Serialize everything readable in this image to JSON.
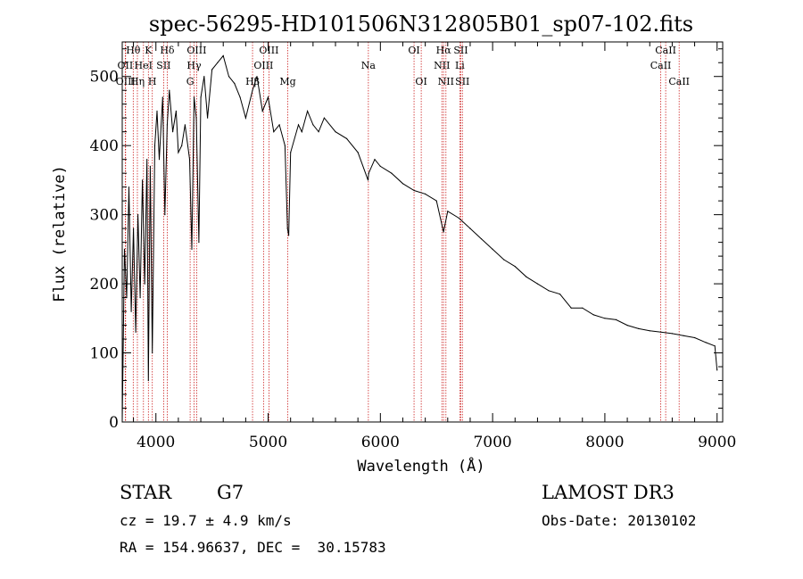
{
  "chart_data": {
    "type": "line",
    "title": "spec-56295-HD101506N312805B01_sp07-102.fits",
    "xlabel": "Wavelength (Å)",
    "ylabel": "Flux (relative)",
    "xlim": [
      3700,
      9050
    ],
    "ylim": [
      0,
      550
    ],
    "xticks": [
      4000,
      5000,
      6000,
      7000,
      8000,
      9000
    ],
    "yticks": [
      0,
      100,
      200,
      300,
      400,
      500
    ],
    "grid": false,
    "series": [
      {
        "name": "flux",
        "x": [
          3700,
          3720,
          3740,
          3760,
          3780,
          3800,
          3820,
          3840,
          3860,
          3880,
          3900,
          3920,
          3933,
          3950,
          3968,
          3990,
          4010,
          4030,
          4060,
          4080,
          4101,
          4120,
          4150,
          4180,
          4200,
          4230,
          4260,
          4300,
          4320,
          4340,
          4360,
          4383,
          4400,
          4430,
          4460,
          4500,
          4550,
          4600,
          4650,
          4700,
          4750,
          4800,
          4861,
          4900,
          4950,
          5000,
          5050,
          5100,
          5150,
          5172,
          5183,
          5200,
          5270,
          5300,
          5350,
          5400,
          5450,
          5500,
          5600,
          5700,
          5800,
          5890,
          5896,
          5950,
          6000,
          6100,
          6200,
          6300,
          6400,
          6500,
          6563,
          6600,
          6700,
          6800,
          6900,
          7000,
          7100,
          7200,
          7300,
          7400,
          7500,
          7600,
          7700,
          7800,
          7900,
          8000,
          8100,
          8200,
          8300,
          8400,
          8500,
          8600,
          8700,
          8800,
          8900,
          8980,
          9000
        ],
        "y": [
          0,
          250,
          180,
          340,
          160,
          280,
          130,
          300,
          180,
          350,
          200,
          380,
          60,
          370,
          100,
          400,
          450,
          380,
          470,
          300,
          430,
          480,
          420,
          450,
          390,
          400,
          430,
          380,
          250,
          470,
          440,
          260,
          470,
          500,
          440,
          510,
          520,
          530,
          500,
          490,
          470,
          440,
          480,
          500,
          450,
          470,
          420,
          430,
          400,
          280,
          270,
          390,
          430,
          420,
          450,
          430,
          420,
          440,
          420,
          410,
          390,
          350,
          360,
          380,
          370,
          360,
          345,
          335,
          330,
          320,
          275,
          305,
          295,
          280,
          265,
          250,
          235,
          225,
          210,
          200,
          190,
          185,
          165,
          165,
          155,
          150,
          148,
          140,
          135,
          132,
          130,
          128,
          125,
          122,
          115,
          110,
          75
        ]
      }
    ],
    "lines": [
      {
        "name": "Hθ",
        "x": 3798,
        "row": 1
      },
      {
        "name": "OII",
        "x": 3727,
        "row": 2
      },
      {
        "name": "OIII",
        "x": 3730,
        "row": 3
      },
      {
        "name": "K",
        "x": 3933,
        "row": 1
      },
      {
        "name": "HeI",
        "x": 3889,
        "row": 2
      },
      {
        "name": "Hη",
        "x": 3835,
        "row": 3
      },
      {
        "name": "SII",
        "x": 4069,
        "row": 2
      },
      {
        "name": "H",
        "x": 3968,
        "row": 3
      },
      {
        "name": "Hδ",
        "x": 4101,
        "row": 1
      },
      {
        "name": "OIII",
        "x": 4363,
        "row": 1
      },
      {
        "name": "Hγ",
        "x": 4340,
        "row": 2
      },
      {
        "name": "G",
        "x": 4305,
        "row": 3
      },
      {
        "name": "Hβ",
        "x": 4861,
        "row": 3
      },
      {
        "name": "OIII",
        "x": 5007,
        "row": 1
      },
      {
        "name": "OIII",
        "x": 4959,
        "row": 2
      },
      {
        "name": "Mg",
        "x": 5175,
        "row": 3
      },
      {
        "name": "Na",
        "x": 5893,
        "row": 2
      },
      {
        "name": "OI",
        "x": 6300,
        "row": 1
      },
      {
        "name": "OI",
        "x": 6364,
        "row": 3
      },
      {
        "name": "Hα",
        "x": 6563,
        "row": 1
      },
      {
        "name": "NII",
        "x": 6548,
        "row": 2
      },
      {
        "name": "NII",
        "x": 6584,
        "row": 3
      },
      {
        "name": "SII",
        "x": 6717,
        "row": 1
      },
      {
        "name": "Li",
        "x": 6708,
        "row": 2
      },
      {
        "name": "SII",
        "x": 6731,
        "row": 3
      },
      {
        "name": "CaII",
        "x": 8542,
        "row": 1
      },
      {
        "name": "CaII",
        "x": 8498,
        "row": 2
      },
      {
        "name": "CaII",
        "x": 8662,
        "row": 3
      }
    ]
  },
  "info": {
    "object_type": "STAR",
    "subclass": "G7",
    "survey": "LAMOST DR3",
    "cz": "cz = 19.7 ± 4.9 km/s",
    "obs_date": "Obs-Date: 20130102",
    "coords": "RA = 154.96637, DEC =  30.15783"
  }
}
